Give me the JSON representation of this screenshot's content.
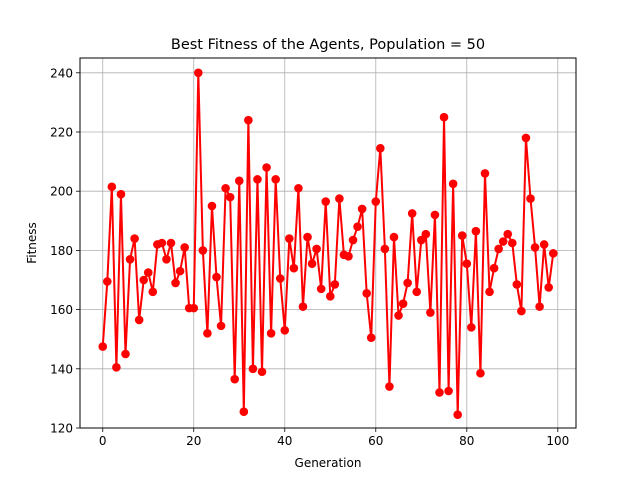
{
  "chart_data": {
    "type": "line",
    "title": "Best Fitness of the Agents, Population = 50",
    "xlabel": "Generation",
    "ylabel": "Fitness",
    "xlim": [
      -5,
      104
    ],
    "ylim": [
      120,
      245
    ],
    "xticks": [
      0,
      20,
      40,
      60,
      80,
      100
    ],
    "yticks": [
      120,
      140,
      160,
      180,
      200,
      220,
      240
    ],
    "grid": true,
    "series_color": "#ff0000",
    "x": [
      0,
      1,
      2,
      3,
      4,
      5,
      6,
      7,
      8,
      9,
      10,
      11,
      12,
      13,
      14,
      15,
      16,
      17,
      18,
      19,
      20,
      21,
      22,
      23,
      24,
      25,
      26,
      27,
      28,
      29,
      30,
      31,
      32,
      33,
      34,
      35,
      36,
      37,
      38,
      39,
      40,
      41,
      42,
      43,
      44,
      45,
      46,
      47,
      48,
      49,
      50,
      51,
      52,
      53,
      54,
      55,
      56,
      57,
      58,
      59,
      60,
      61,
      62,
      63,
      64,
      65,
      66,
      67,
      68,
      69,
      70,
      71,
      72,
      73,
      74,
      75,
      76,
      77,
      78,
      79,
      80,
      81,
      82,
      83,
      84,
      85,
      86,
      87,
      88,
      89,
      90,
      91,
      92,
      93,
      94,
      95,
      96,
      97,
      98,
      99
    ],
    "values": [
      147.5,
      169.5,
      201.5,
      140.5,
      199,
      145,
      177,
      184,
      156.5,
      170,
      172.5,
      166,
      182,
      182.5,
      177,
      182.5,
      169,
      173,
      181,
      160.5,
      160.5,
      240,
      180,
      152,
      195,
      171,
      154.5,
      201,
      198,
      136.5,
      203.5,
      125.5,
      224,
      140,
      204,
      139,
      208,
      152,
      204,
      170.5,
      153,
      184,
      174,
      201,
      161,
      184.5,
      175.5,
      180.5,
      167,
      196.5,
      164.5,
      168.5,
      197.5,
      178.5,
      178,
      183.5,
      188,
      194,
      165.5,
      150.5,
      196.5,
      214.5,
      180.5,
      134,
      184.5,
      158,
      162,
      169,
      192.5,
      166,
      183.5,
      185.5,
      159,
      192,
      132,
      225,
      132.5,
      202.5,
      124.5,
      185,
      175.5,
      154,
      186.5,
      138.5,
      206,
      166,
      174,
      180.5,
      183,
      185.5,
      182.5,
      168.5,
      159.5,
      218,
      197.5,
      181,
      161,
      182,
      167.5,
      179
    ]
  }
}
